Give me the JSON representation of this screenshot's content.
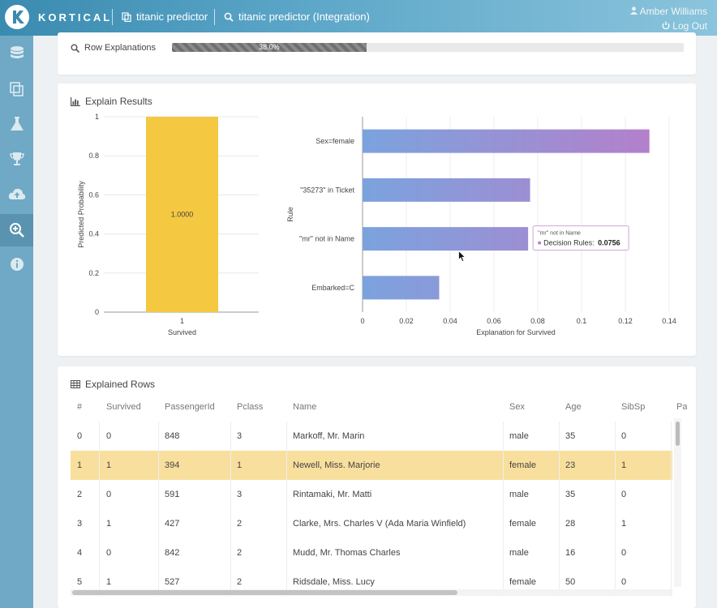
{
  "header": {
    "brand": "KORTICAL",
    "crumbs": [
      {
        "label": "titanic predictor",
        "icon": "copy-icon"
      },
      {
        "label": "titanic predictor (Integration)",
        "icon": "search-icon"
      }
    ],
    "user": "Amber Williams",
    "logout": "Log Out"
  },
  "sidebar": {
    "items": [
      {
        "icon": "database-icon",
        "active": false
      },
      {
        "icon": "copy-icon",
        "active": false
      },
      {
        "icon": "flask-icon",
        "active": false
      },
      {
        "icon": "trophy-icon",
        "active": false
      },
      {
        "icon": "cloud-upload-icon",
        "active": false
      },
      {
        "icon": "search-plus-icon",
        "active": true
      },
      {
        "icon": "info-icon",
        "active": false
      }
    ]
  },
  "row_explanations": {
    "label": "Row Explanations",
    "progress_percent": 38.0,
    "progress_label": "38.0%"
  },
  "explain_results": {
    "title": "Explain Results"
  },
  "chart_data": [
    {
      "type": "bar",
      "orientation": "vertical",
      "categories": [
        "1"
      ],
      "values": [
        1.0
      ],
      "data_labels": [
        "1.0000"
      ],
      "xlabel": "Survived",
      "ylabel": "Predicted Probability",
      "ylim": [
        0,
        1
      ],
      "yticks": [
        "0",
        "0.2",
        "0.4",
        "0.6",
        "0.8",
        "1"
      ],
      "colors": [
        "#f5c842"
      ]
    },
    {
      "type": "bar",
      "orientation": "horizontal",
      "categories": [
        "Sex=female",
        "\"35273\" in Ticket",
        "\"mr\" not in Name",
        "Embarked=C"
      ],
      "values": [
        0.131,
        0.0765,
        0.0756,
        0.035
      ],
      "xlabel": "Explanation for Survived",
      "ylabel": "Rule",
      "xlim": [
        0,
        0.14
      ],
      "xticks": [
        "0",
        "0.02",
        "0.04",
        "0.06",
        "0.08",
        "0.1",
        "0.12",
        "0.14"
      ],
      "colors": [
        "#7ba3de",
        "#b57fcb"
      ],
      "tooltip": {
        "title": "\"mr\" not in Name",
        "series": "Decision Rules",
        "value": "0.0756"
      }
    }
  ],
  "explained_rows": {
    "title": "Explained Rows",
    "columns": [
      "#",
      "Survived",
      "PassengerId",
      "Pclass",
      "Name",
      "Sex",
      "Age",
      "SibSp",
      "Pa"
    ],
    "rows": [
      [
        "0",
        "0",
        "848",
        "3",
        "Markoff, Mr. Marin",
        "male",
        "35",
        "0"
      ],
      [
        "1",
        "1",
        "394",
        "1",
        "Newell, Miss. Marjorie",
        "female",
        "23",
        "1"
      ],
      [
        "2",
        "0",
        "591",
        "3",
        "Rintamaki, Mr. Matti",
        "male",
        "35",
        "0"
      ],
      [
        "3",
        "1",
        "427",
        "2",
        "Clarke, Mrs. Charles V (Ada Maria Winfield)",
        "female",
        "28",
        "1"
      ],
      [
        "4",
        "0",
        "842",
        "2",
        "Mudd, Mr. Thomas Charles",
        "male",
        "16",
        "0"
      ],
      [
        "5",
        "1",
        "527",
        "2",
        "Ridsdale, Miss. Lucy",
        "female",
        "50",
        "0"
      ]
    ],
    "selected_row": 1
  }
}
